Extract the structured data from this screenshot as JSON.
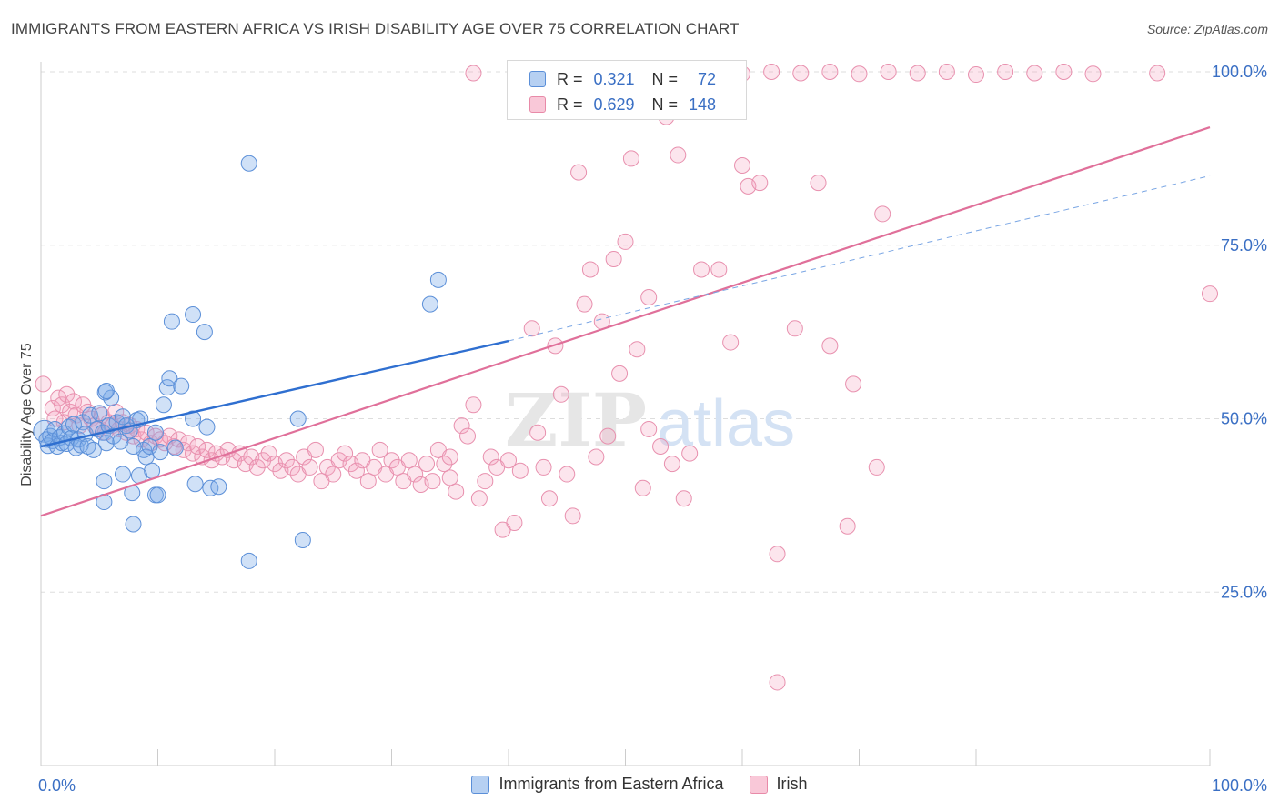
{
  "header": {
    "title": "IMMIGRANTS FROM EASTERN AFRICA VS IRISH DISABILITY AGE OVER 75 CORRELATION CHART",
    "source": "Source: ZipAtlas.com"
  },
  "watermark": {
    "zip": "ZIP",
    "atlas": "atlas"
  },
  "legend": {
    "rows": [
      {
        "r_label": "R =",
        "r_value": "0.321",
        "n_label": "N =",
        "n_value": "72",
        "color": "#a8c8f0",
        "border": "#5b8fd8"
      },
      {
        "r_label": "R =",
        "r_value": "0.629",
        "n_label": "N =",
        "n_value": "148",
        "color": "#f8bcd0",
        "border": "#e88aa8"
      }
    ]
  },
  "bottom_legend": {
    "items": [
      {
        "label": "Immigrants from Eastern Africa"
      },
      {
        "label": "Irish"
      }
    ]
  },
  "colors": {
    "blue_fill": "rgba(120,168,232,0.35)",
    "blue_stroke": "#5b8fd8",
    "blue_line": "#2f6fd0",
    "pink_fill": "rgba(244,160,190,0.28)",
    "pink_stroke": "#e890ae",
    "pink_line": "#e0709a",
    "axis_text": "#3a6fc4",
    "grid": "#dddddd"
  },
  "chart_data": {
    "type": "scatter",
    "title": "IMMIGRANTS FROM EASTERN AFRICA VS IRISH DISABILITY AGE OVER 75 CORRELATION CHART",
    "xlabel": "",
    "ylabel": "Disability Age Over 75",
    "xlim": [
      0,
      100
    ],
    "ylim": [
      0,
      102
    ],
    "x_tick_labels": [
      "0.0%",
      "100.0%"
    ],
    "y_tick_labels": [
      "25.0%",
      "50.0%",
      "75.0%",
      "100.0%"
    ],
    "y_ticks": [
      25,
      50,
      75,
      100
    ],
    "grid": true,
    "legend_position": "top-center",
    "series": [
      {
        "name": "Immigrants from Eastern Africa",
        "r": 0.321,
        "n": 72,
        "trend": {
          "x0": 0,
          "y0": 46.0,
          "x1": 40,
          "y1": 61.2,
          "dashed_to_x": 100,
          "dashed_to_y": 85.0
        },
        "points": [
          [
            0.3,
            48.2
          ],
          [
            0.5,
            47.0
          ],
          [
            0.6,
            46.1
          ],
          [
            0.8,
            47.5
          ],
          [
            1.0,
            46.8
          ],
          [
            1.2,
            48.5
          ],
          [
            1.4,
            46.0
          ],
          [
            1.6,
            47.3
          ],
          [
            1.8,
            46.5
          ],
          [
            2.0,
            47.9
          ],
          [
            2.2,
            46.4
          ],
          [
            2.4,
            48.8
          ],
          [
            2.6,
            47.2
          ],
          [
            2.8,
            49.2
          ],
          [
            3.0,
            45.8
          ],
          [
            3.2,
            47.0
          ],
          [
            3.4,
            46.2
          ],
          [
            3.6,
            49.5
          ],
          [
            3.8,
            47.8
          ],
          [
            4.0,
            46.0
          ],
          [
            4.2,
            50.5
          ],
          [
            4.5,
            45.5
          ],
          [
            4.8,
            48.5
          ],
          [
            5.0,
            50.8
          ],
          [
            5.3,
            48.0
          ],
          [
            5.6,
            46.5
          ],
          [
            5.8,
            49.0
          ],
          [
            6.0,
            53.0
          ],
          [
            6.2,
            47.5
          ],
          [
            6.5,
            49.5
          ],
          [
            6.8,
            46.7
          ],
          [
            7.0,
            50.3
          ],
          [
            7.3,
            49.0
          ],
          [
            7.6,
            48.3
          ],
          [
            7.9,
            46.0
          ],
          [
            8.2,
            49.8
          ],
          [
            8.5,
            50.0
          ],
          [
            8.8,
            45.5
          ],
          [
            9.0,
            44.5
          ],
          [
            9.3,
            46.0
          ],
          [
            9.5,
            42.5
          ],
          [
            9.8,
            48.0
          ],
          [
            10.2,
            45.2
          ],
          [
            10.5,
            52.0
          ],
          [
            10.8,
            54.5
          ],
          [
            11.0,
            55.8
          ],
          [
            11.2,
            64.0
          ],
          [
            11.5,
            45.8
          ],
          [
            12.0,
            54.7
          ],
          [
            13.0,
            65.0
          ],
          [
            13.0,
            50.0
          ],
          [
            14.0,
            62.5
          ],
          [
            14.2,
            48.8
          ],
          [
            14.5,
            40.0
          ],
          [
            15.2,
            40.2
          ],
          [
            17.8,
            86.8
          ],
          [
            17.8,
            29.5
          ],
          [
            5.5,
            53.8
          ],
          [
            7.8,
            39.3
          ],
          [
            9.8,
            39.0
          ],
          [
            5.4,
            41.0
          ],
          [
            7.0,
            42.0
          ],
          [
            5.4,
            38.0
          ],
          [
            7.9,
            34.8
          ],
          [
            22.4,
            32.5
          ],
          [
            22.0,
            50.0
          ],
          [
            13.2,
            40.6
          ],
          [
            8.4,
            41.8
          ],
          [
            10.0,
            39.0
          ],
          [
            33.3,
            66.5
          ],
          [
            34.0,
            70.0
          ],
          [
            5.6,
            54.0
          ]
        ]
      },
      {
        "name": "Irish",
        "r": 0.629,
        "n": 148,
        "trend": {
          "x0": 0,
          "y0": 36.0,
          "x1": 100,
          "y1": 92.0
        },
        "points": [
          [
            0.2,
            55.0
          ],
          [
            1.0,
            51.5
          ],
          [
            1.2,
            50.0
          ],
          [
            1.5,
            53.0
          ],
          [
            1.8,
            52.0
          ],
          [
            2.0,
            49.5
          ],
          [
            2.2,
            53.5
          ],
          [
            2.5,
            51.0
          ],
          [
            2.8,
            52.5
          ],
          [
            3.0,
            50.5
          ],
          [
            3.3,
            49.0
          ],
          [
            3.6,
            52.0
          ],
          [
            4.0,
            51.0
          ],
          [
            4.3,
            50.0
          ],
          [
            4.6,
            49.0
          ],
          [
            4.9,
            48.5
          ],
          [
            5.2,
            50.5
          ],
          [
            5.5,
            48.0
          ],
          [
            5.8,
            49.5
          ],
          [
            6.1,
            49.0
          ],
          [
            6.4,
            51.0
          ],
          [
            6.7,
            48.5
          ],
          [
            7.0,
            49.5
          ],
          [
            7.3,
            48.0
          ],
          [
            7.6,
            49.0
          ],
          [
            7.9,
            47.5
          ],
          [
            8.2,
            48.5
          ],
          [
            8.6,
            47.0
          ],
          [
            9.0,
            48.0
          ],
          [
            9.4,
            46.5
          ],
          [
            9.8,
            47.5
          ],
          [
            10.2,
            47.0
          ],
          [
            10.6,
            46.5
          ],
          [
            11.0,
            47.5
          ],
          [
            11.4,
            46.0
          ],
          [
            11.8,
            47.0
          ],
          [
            12.2,
            45.5
          ],
          [
            12.6,
            46.5
          ],
          [
            13.0,
            45.0
          ],
          [
            13.4,
            46.0
          ],
          [
            13.8,
            44.5
          ],
          [
            14.2,
            45.5
          ],
          [
            14.6,
            44.0
          ],
          [
            15.0,
            45.0
          ],
          [
            15.5,
            44.5
          ],
          [
            16.0,
            45.5
          ],
          [
            16.5,
            44.0
          ],
          [
            17.0,
            45.0
          ],
          [
            17.5,
            43.5
          ],
          [
            18.0,
            44.5
          ],
          [
            18.5,
            43.0
          ],
          [
            19.0,
            44.0
          ],
          [
            19.5,
            45.0
          ],
          [
            20.0,
            43.5
          ],
          [
            20.5,
            42.5
          ],
          [
            21.0,
            44.0
          ],
          [
            21.5,
            43.0
          ],
          [
            22.0,
            42.0
          ],
          [
            22.5,
            44.5
          ],
          [
            23.0,
            43.0
          ],
          [
            23.5,
            45.5
          ],
          [
            24.0,
            41.0
          ],
          [
            24.5,
            43.0
          ],
          [
            25.0,
            42.0
          ],
          [
            25.5,
            44.0
          ],
          [
            26.0,
            45.0
          ],
          [
            26.5,
            43.5
          ],
          [
            27.0,
            42.5
          ],
          [
            27.5,
            44.0
          ],
          [
            28.0,
            41.0
          ],
          [
            28.5,
            43.0
          ],
          [
            29.0,
            45.5
          ],
          [
            29.5,
            42.0
          ],
          [
            30.0,
            44.0
          ],
          [
            30.5,
            43.0
          ],
          [
            31.0,
            41.0
          ],
          [
            31.5,
            44.0
          ],
          [
            32.0,
            42.0
          ],
          [
            32.5,
            40.5
          ],
          [
            33.0,
            43.5
          ],
          [
            33.5,
            41.0
          ],
          [
            34.0,
            45.5
          ],
          [
            34.5,
            43.5
          ],
          [
            35.0,
            44.5
          ],
          [
            35.5,
            39.5
          ],
          [
            36.0,
            49.0
          ],
          [
            36.5,
            47.5
          ],
          [
            37.0,
            52.0
          ],
          [
            37.5,
            38.5
          ],
          [
            38.0,
            41.0
          ],
          [
            38.5,
            44.5
          ],
          [
            39.0,
            43.0
          ],
          [
            39.5,
            34.0
          ],
          [
            40.0,
            44.0
          ],
          [
            40.5,
            35.0
          ],
          [
            41.0,
            42.5
          ],
          [
            42.0,
            63.0
          ],
          [
            42.5,
            48.0
          ],
          [
            43.0,
            43.0
          ],
          [
            43.5,
            38.5
          ],
          [
            44.0,
            60.5
          ],
          [
            44.5,
            53.5
          ],
          [
            45.0,
            42.0
          ],
          [
            45.5,
            36.0
          ],
          [
            46.0,
            85.5
          ],
          [
            46.5,
            66.5
          ],
          [
            47.0,
            71.5
          ],
          [
            47.5,
            44.5
          ],
          [
            48.0,
            64.0
          ],
          [
            48.5,
            47.5
          ],
          [
            49.0,
            73.0
          ],
          [
            49.5,
            56.5
          ],
          [
            50.0,
            75.5
          ],
          [
            50.5,
            87.5
          ],
          [
            51.0,
            60.0
          ],
          [
            51.5,
            40.0
          ],
          [
            52.0,
            67.5
          ],
          [
            53.0,
            46.0
          ],
          [
            53.5,
            93.5
          ],
          [
            54.0,
            43.5
          ],
          [
            54.5,
            88.0
          ],
          [
            55.0,
            38.5
          ],
          [
            55.5,
            45.0
          ],
          [
            56.5,
            71.5
          ],
          [
            58.0,
            71.5
          ],
          [
            59.0,
            61.0
          ],
          [
            60.0,
            86.5
          ],
          [
            60.5,
            83.5
          ],
          [
            61.5,
            84.0
          ],
          [
            63.0,
            30.5
          ],
          [
            64.5,
            63.0
          ],
          [
            66.5,
            84.0
          ],
          [
            67.5,
            60.5
          ],
          [
            69.5,
            55.0
          ],
          [
            69.0,
            34.5
          ],
          [
            71.5,
            43.0
          ],
          [
            72.0,
            79.5
          ],
          [
            52.0,
            48.5
          ],
          [
            37.0,
            99.8
          ],
          [
            52.0,
            100.0
          ],
          [
            55.0,
            99.6
          ],
          [
            57.5,
            100.0
          ],
          [
            60.0,
            99.7
          ],
          [
            62.5,
            100.0
          ],
          [
            65.0,
            99.8
          ],
          [
            67.5,
            100.0
          ],
          [
            70.0,
            99.7
          ],
          [
            72.5,
            100.0
          ],
          [
            75.0,
            99.8
          ],
          [
            77.5,
            100.0
          ],
          [
            80.0,
            99.6
          ],
          [
            82.5,
            100.0
          ],
          [
            85.0,
            99.8
          ],
          [
            87.5,
            100.0
          ],
          [
            90.0,
            99.7
          ],
          [
            95.5,
            99.8
          ],
          [
            100.0,
            68.0
          ],
          [
            63.0,
            12.0
          ],
          [
            35.0,
            41.5
          ]
        ]
      }
    ]
  }
}
